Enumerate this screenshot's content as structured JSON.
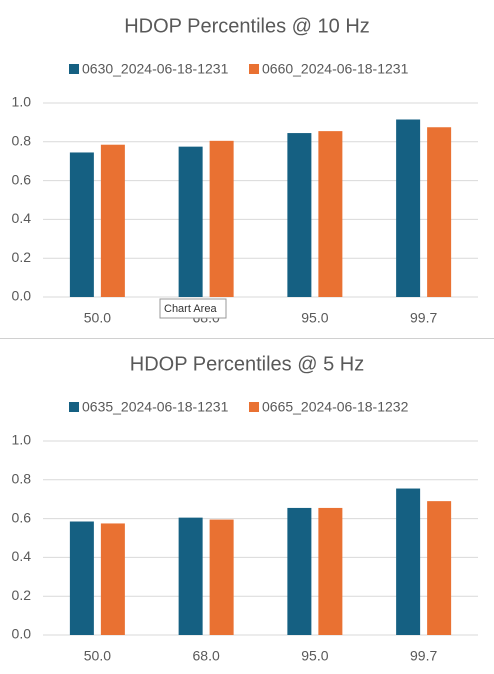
{
  "chart_data": [
    {
      "type": "bar",
      "title": "HDOP Percentiles @ 10 Hz",
      "categories": [
        "50.0",
        "68.0",
        "95.0",
        "99.7"
      ],
      "series": [
        {
          "name": "0630_2024-06-18-1231",
          "color": "#156082",
          "values": [
            0.745,
            0.775,
            0.845,
            0.915
          ]
        },
        {
          "name": "0660_2024-06-18-1231",
          "color": "#e97132",
          "values": [
            0.785,
            0.805,
            0.855,
            0.875
          ]
        }
      ],
      "ylim": [
        0,
        1
      ],
      "yticks": [
        {
          "value": 0,
          "label": "0.0"
        },
        {
          "value": 0.2,
          "label": "0.2"
        },
        {
          "value": 0.4,
          "label": "0.4"
        },
        {
          "value": 0.6,
          "label": "0.6"
        },
        {
          "value": 0.8,
          "label": "0.8"
        },
        {
          "value": 1,
          "label": "1.0"
        }
      ],
      "grid": true,
      "legend": "top"
    },
    {
      "type": "bar",
      "title": "HDOP Percentiles @ 5 Hz",
      "categories": [
        "50.0",
        "68.0",
        "95.0",
        "99.7"
      ],
      "series": [
        {
          "name": "0635_2024-06-18-1231",
          "color": "#156082",
          "values": [
            0.585,
            0.605,
            0.655,
            0.755
          ]
        },
        {
          "name": "0665_2024-06-18-1232",
          "color": "#e97132",
          "values": [
            0.575,
            0.595,
            0.655,
            0.69
          ]
        }
      ],
      "ylim": [
        0,
        1
      ],
      "yticks": [
        {
          "value": 0,
          "label": "0.0"
        },
        {
          "value": 0.2,
          "label": "0.2"
        },
        {
          "value": 0.4,
          "label": "0.4"
        },
        {
          "value": 0.6,
          "label": "0.6"
        },
        {
          "value": 0.8,
          "label": "0.8"
        },
        {
          "value": 1,
          "label": "1.0"
        }
      ],
      "grid": true,
      "legend": "top"
    }
  ],
  "tooltip": {
    "text": "Chart Area"
  }
}
